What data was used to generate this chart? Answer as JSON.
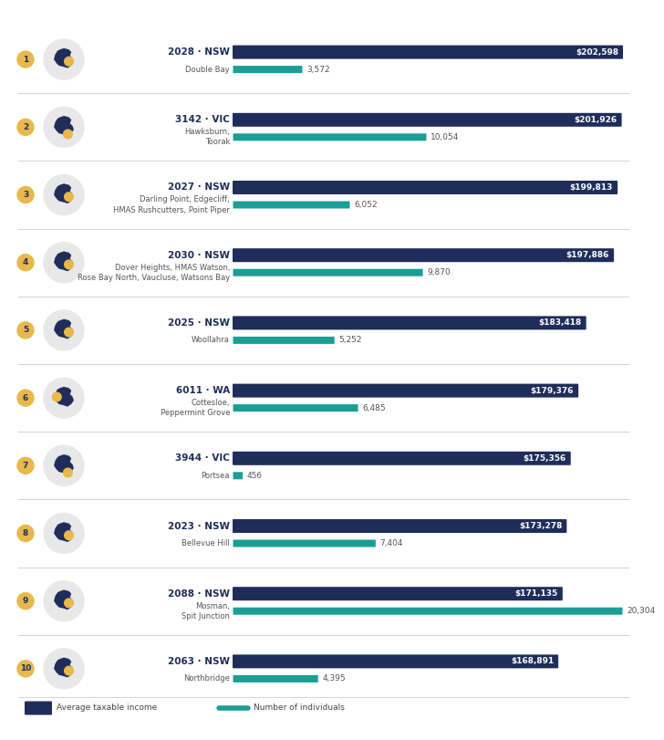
{
  "entries": [
    {
      "rank": 1,
      "postcode": "2028",
      "state": "NSW",
      "suburb": "Double Bay",
      "avg_income": 202598,
      "num_individuals": 3572
    },
    {
      "rank": 2,
      "postcode": "3142",
      "state": "VIC",
      "suburb": "Hawksburn,\nToorak",
      "avg_income": 201926,
      "num_individuals": 10054
    },
    {
      "rank": 3,
      "postcode": "2027",
      "state": "NSW",
      "suburb": "Darling Point, Edgecliff,\nHMAS Rushcutters, Point Piper",
      "avg_income": 199813,
      "num_individuals": 6052
    },
    {
      "rank": 4,
      "postcode": "2030",
      "state": "NSW",
      "suburb": "Dover Heights, HMAS Watson,\nRose Bay North, Vaucluse, Watsons Bay",
      "avg_income": 197886,
      "num_individuals": 9870
    },
    {
      "rank": 5,
      "postcode": "2025",
      "state": "NSW",
      "suburb": "Woollahra",
      "avg_income": 183418,
      "num_individuals": 5252
    },
    {
      "rank": 6,
      "postcode": "6011",
      "state": "WA",
      "suburb": "Cottesloe,\nPeppermint Grove",
      "avg_income": 179376,
      "num_individuals": 6485
    },
    {
      "rank": 7,
      "postcode": "3944",
      "state": "VIC",
      "suburb": "Portsea",
      "avg_income": 175356,
      "num_individuals": 456
    },
    {
      "rank": 8,
      "postcode": "2023",
      "state": "NSW",
      "suburb": "Bellevue Hill",
      "avg_income": 173278,
      "num_individuals": 7404
    },
    {
      "rank": 9,
      "postcode": "2088",
      "state": "NSW",
      "suburb": "Mosman,\nSpit Junction",
      "avg_income": 171135,
      "num_individuals": 20304
    },
    {
      "rank": 10,
      "postcode": "2063",
      "state": "NSW",
      "suburb": "Northbridge",
      "avg_income": 168891,
      "num_individuals": 4395
    }
  ],
  "bar_color_income": "#1e2d5a",
  "bar_color_individuals": "#1a9e96",
  "rank_badge_color": "#e8b84b",
  "rank_text_color": "#1e2d5a",
  "bg_color": "#ffffff",
  "max_income": 202598,
  "max_individuals": 20304,
  "legend_income_label": "Average taxable income",
  "legend_individuals_label": "Number of individuals",
  "separator_color": "#cccccc",
  "label_color": "#1e2d5a",
  "suburb_color": "#555555",
  "value_label_color": "#555555",
  "map_bg_color": "#e8e8e8",
  "map_aus_color": "#1e2d5a",
  "map_highlight_nsw": "#e8b84b",
  "map_highlight_vic": "#e8b84b",
  "map_highlight_wa": "#e8b84b"
}
